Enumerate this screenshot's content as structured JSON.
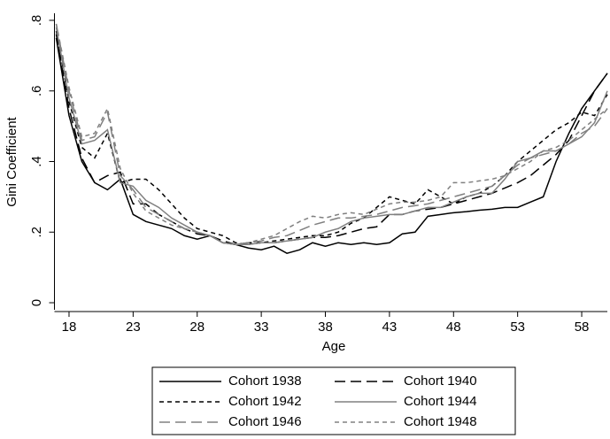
{
  "chart_data": {
    "type": "line",
    "x_label": "Age",
    "y_label": "Gini Coefficient",
    "x": [
      17,
      18,
      19,
      20,
      21,
      22,
      23,
      24,
      25,
      26,
      27,
      28,
      29,
      30,
      31,
      32,
      33,
      34,
      35,
      36,
      37,
      38,
      39,
      40,
      41,
      42,
      43,
      44,
      45,
      46,
      47,
      48,
      49,
      50,
      51,
      52,
      53,
      54,
      55,
      56,
      57,
      58,
      59,
      60
    ],
    "xlim": [
      17,
      60
    ],
    "xticks": [
      18,
      23,
      28,
      33,
      38,
      43,
      48,
      53,
      58
    ],
    "ylim": [
      -0.02,
      0.82
    ],
    "yticks": [
      0,
      {
        "value": 0.2,
        "label": ".2"
      },
      {
        "value": 0.4,
        "label": ".4"
      },
      {
        "value": 0.6,
        "label": ".6"
      },
      {
        "value": 0.8,
        "label": ".8"
      }
    ],
    "grid": false,
    "legend": "bottom",
    "series": [
      {
        "name": "Cohort 1938",
        "color": "#000000",
        "dash": "solid",
        "values": [
          0.75,
          0.53,
          0.4,
          0.34,
          0.32,
          0.35,
          0.25,
          0.23,
          0.22,
          0.21,
          0.19,
          0.18,
          0.19,
          0.17,
          0.165,
          0.155,
          0.15,
          0.16,
          0.14,
          0.15,
          0.17,
          0.16,
          0.17,
          0.165,
          0.17,
          0.165,
          0.17,
          0.195,
          0.2,
          0.245,
          0.25,
          0.255,
          0.258,
          0.262,
          0.265,
          0.27,
          0.27,
          0.285,
          0.3,
          0.4,
          0.48,
          0.55,
          0.6,
          0.65
        ]
      },
      {
        "name": "Cohort 1940",
        "color": "#000000",
        "dash": "long",
        "values": [
          0.76,
          0.55,
          0.41,
          0.34,
          0.36,
          0.37,
          0.28,
          0.28,
          0.25,
          0.23,
          0.21,
          0.195,
          0.19,
          0.175,
          0.165,
          0.17,
          0.17,
          0.17,
          0.175,
          0.18,
          0.185,
          0.185,
          0.19,
          0.2,
          0.21,
          0.215,
          0.25,
          0.25,
          0.26,
          0.265,
          0.27,
          0.28,
          0.29,
          0.3,
          0.31,
          0.325,
          0.34,
          0.36,
          0.39,
          0.42,
          0.46,
          0.53,
          0.6,
          0.65
        ]
      },
      {
        "name": "Cohort 1942",
        "color": "#000000",
        "dash": "short",
        "values": [
          0.77,
          0.57,
          0.44,
          0.41,
          0.48,
          0.34,
          0.35,
          0.35,
          0.32,
          0.28,
          0.24,
          0.21,
          0.2,
          0.19,
          0.17,
          0.165,
          0.17,
          0.175,
          0.18,
          0.185,
          0.19,
          0.19,
          0.2,
          0.225,
          0.24,
          0.27,
          0.3,
          0.29,
          0.28,
          0.32,
          0.3,
          0.28,
          0.3,
          0.31,
          0.33,
          0.36,
          0.4,
          0.43,
          0.46,
          0.49,
          0.51,
          0.54,
          0.53,
          0.59
        ]
      },
      {
        "name": "Cohort 1944",
        "color": "#808080",
        "dash": "solid",
        "values": [
          0.78,
          0.58,
          0.45,
          0.46,
          0.49,
          0.34,
          0.33,
          0.29,
          0.27,
          0.24,
          0.22,
          0.2,
          0.19,
          0.17,
          0.165,
          0.165,
          0.17,
          0.17,
          0.175,
          0.18,
          0.185,
          0.2,
          0.21,
          0.23,
          0.24,
          0.245,
          0.25,
          0.25,
          0.26,
          0.27,
          0.27,
          0.285,
          0.3,
          0.31,
          0.31,
          0.35,
          0.4,
          0.41,
          0.43,
          0.43,
          0.45,
          0.47,
          0.51,
          0.6
        ]
      },
      {
        "name": "Cohort 1946",
        "color": "#808080",
        "dash": "long",
        "values": [
          0.79,
          0.6,
          0.46,
          0.47,
          0.54,
          0.36,
          0.32,
          0.27,
          0.25,
          0.23,
          0.21,
          0.2,
          0.19,
          0.17,
          0.165,
          0.17,
          0.175,
          0.185,
          0.19,
          0.205,
          0.22,
          0.23,
          0.24,
          0.24,
          0.245,
          0.25,
          0.26,
          0.27,
          0.275,
          0.28,
          0.29,
          0.3,
          0.31,
          0.32,
          0.33,
          0.36,
          0.39,
          0.41,
          0.42,
          0.43,
          0.45,
          0.48,
          0.5,
          0.55
        ]
      },
      {
        "name": "Cohort 1948",
        "color": "#808080",
        "dash": "short",
        "values": [
          0.79,
          0.61,
          0.47,
          0.48,
          0.55,
          0.38,
          0.31,
          0.26,
          0.24,
          0.22,
          0.21,
          0.2,
          0.19,
          0.17,
          0.165,
          0.17,
          0.18,
          0.19,
          0.21,
          0.23,
          0.245,
          0.24,
          0.25,
          0.255,
          0.25,
          0.265,
          0.28,
          0.285,
          0.285,
          0.29,
          0.3,
          0.34,
          0.34,
          0.345,
          0.35,
          0.36,
          0.38,
          0.4,
          0.43,
          0.44,
          0.46,
          0.49,
          0.52,
          0.55
        ]
      }
    ]
  }
}
